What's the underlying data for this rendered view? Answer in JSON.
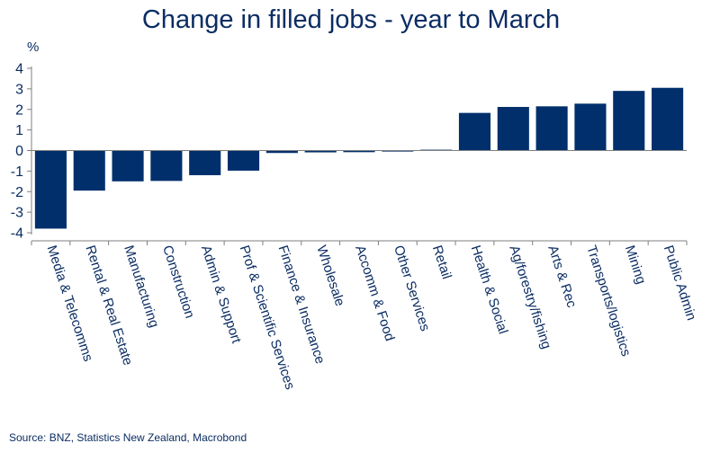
{
  "chart_data": {
    "type": "bar",
    "title": "Change in filled jobs - year to March",
    "ylabel": "%",
    "ylim": [
      -4,
      4
    ],
    "yticks": [
      4,
      3,
      2,
      1,
      0,
      -1,
      -2,
      -3,
      -4
    ],
    "categories": [
      "Media & Telecomms",
      "Rental & Real Estate",
      "Manufacturing",
      "Construction",
      "Admin & Support",
      "Prof & Scientific Services",
      "Finance & Insurance",
      "Wholesale",
      "Accomm & Food",
      "Other Services",
      "Retail",
      "Health & Social",
      "Ag/forestry/fishing",
      "Arts & Rec",
      "Transports/logistics",
      "Mining",
      "Public Admin"
    ],
    "values": [
      -3.8,
      -1.95,
      -1.5,
      -1.48,
      -1.2,
      -0.98,
      -0.12,
      -0.09,
      -0.08,
      -0.05,
      0.04,
      1.83,
      2.12,
      2.15,
      2.28,
      2.9,
      3.05
    ],
    "source": "Source: BNZ, Statistics New Zealand, Macrobond",
    "grid": false,
    "legend": "none",
    "colors": {
      "bar": "#002f6c",
      "text": "#0b2d63",
      "axis": "#7f7f7f"
    }
  }
}
